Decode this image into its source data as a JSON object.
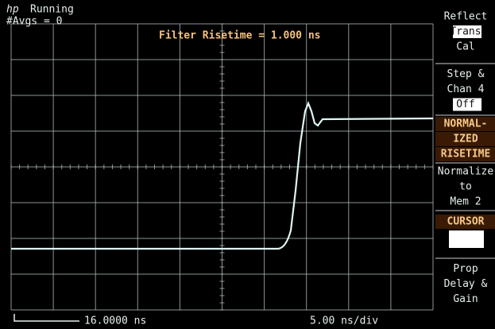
{
  "status": {
    "logo": "hp",
    "state": "Running",
    "averages": "#Avgs = 0"
  },
  "measurement": "Filter Risetime =  1.000 ns",
  "menu": [
    {
      "lines": [
        "Reflect",
        "Trans",
        "Cal"
      ]
    },
    {
      "lines": [
        "Step &",
        "Chan 4",
        "Off"
      ]
    },
    {
      "lines": [
        "NORMAL-",
        "IZED",
        "RISETIME"
      ]
    },
    {
      "lines": [
        "Normalize",
        "to",
        "Mem 2"
      ]
    },
    {
      "lines": [
        "CURSOR"
      ]
    },
    {
      "lines": [
        "Prop",
        "Delay &",
        "Gain"
      ]
    }
  ],
  "footer": {
    "position": "16.0000 ns",
    "scale": "5.00 ns/div"
  }
}
